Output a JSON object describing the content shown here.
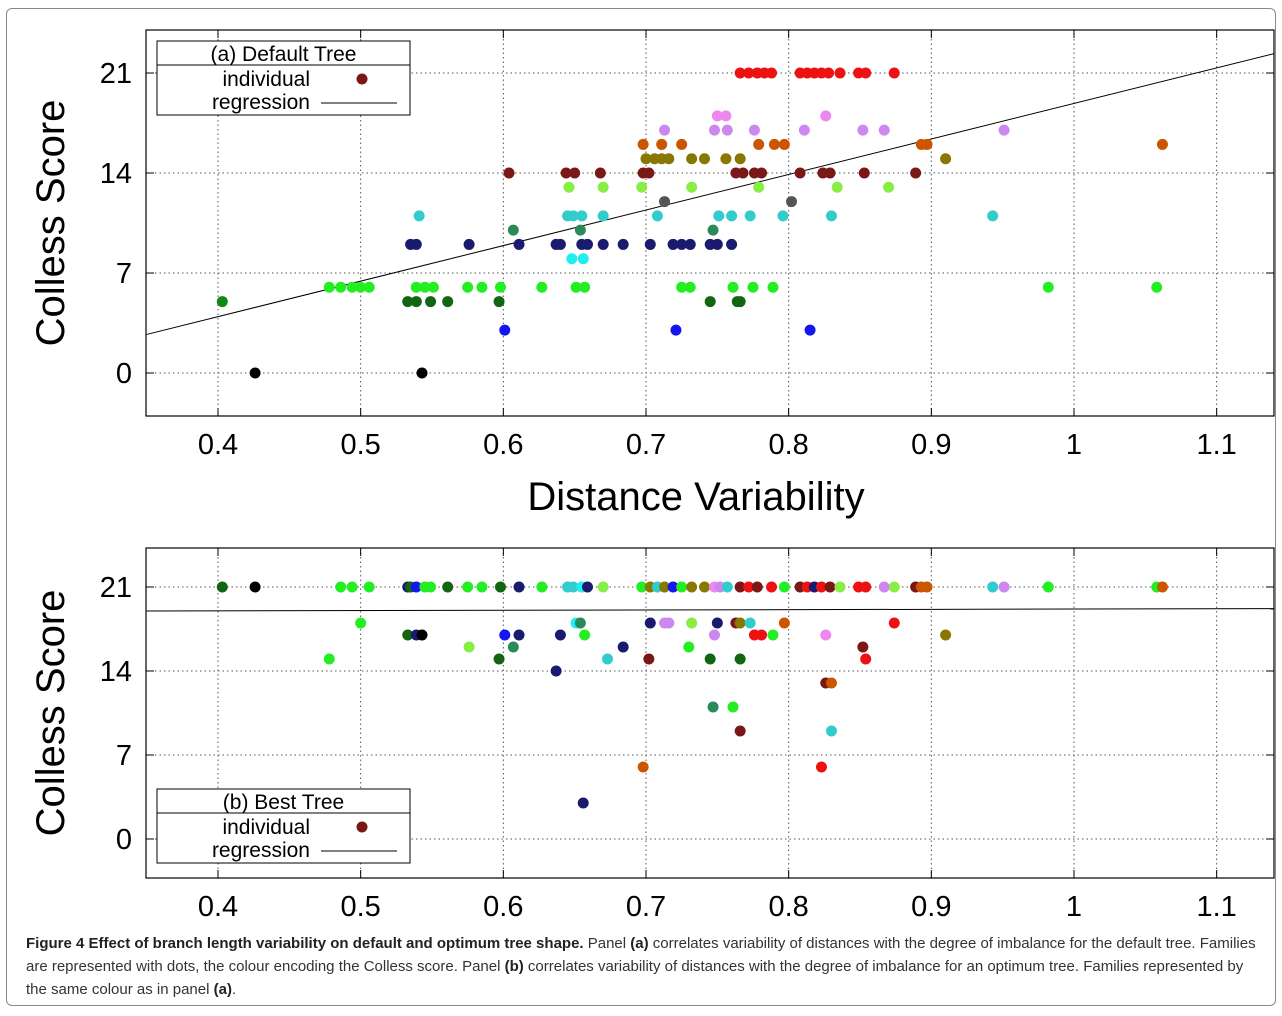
{
  "chart_data": [
    {
      "type": "scatter",
      "panel": "(a) Default Tree",
      "xlabel": "Distance Variability",
      "ylabel": "Colless Score",
      "xlim": [
        0.35,
        1.15
      ],
      "ylim": [
        -3,
        24
      ],
      "xticks": [
        "0.4",
        "0.5",
        "0.6",
        "0.7",
        "0.8",
        "0.9",
        "1",
        "1.1"
      ],
      "yticks": [
        "0",
        "7",
        "14",
        "21"
      ],
      "grid": true,
      "legend": {
        "position": "top-left",
        "title": "(a) Default Tree",
        "entries": [
          "individual",
          "regression"
        ]
      },
      "regression": [
        [
          0.35,
          2.7
        ],
        [
          1.15,
          22.6
        ]
      ],
      "points": [
        [
          0.403,
          5,
          "#118811"
        ],
        [
          0.426,
          0,
          "#000000"
        ],
        [
          0.543,
          0,
          "#000000"
        ],
        [
          0.478,
          6,
          "#22ee22"
        ],
        [
          0.486,
          6,
          "#22ee22"
        ],
        [
          0.494,
          6,
          "#22ee22"
        ],
        [
          0.5,
          6,
          "#22ee22"
        ],
        [
          0.506,
          6,
          "#22ee22"
        ],
        [
          0.533,
          5,
          "#116611"
        ],
        [
          0.539,
          5,
          "#116611"
        ],
        [
          0.549,
          5,
          "#116611"
        ],
        [
          0.561,
          5,
          "#116611"
        ],
        [
          0.597,
          5,
          "#116611"
        ],
        [
          0.539,
          6,
          "#22ee22"
        ],
        [
          0.545,
          6,
          "#22ee22"
        ],
        [
          0.551,
          6,
          "#22ee22"
        ],
        [
          0.575,
          6,
          "#22ee22"
        ],
        [
          0.585,
          6,
          "#22ee22"
        ],
        [
          0.598,
          6,
          "#22ee22"
        ],
        [
          0.627,
          6,
          "#22ee22"
        ],
        [
          0.651,
          6,
          "#22ee22"
        ],
        [
          0.657,
          6,
          "#22ee22"
        ],
        [
          0.725,
          6,
          "#22ee22"
        ],
        [
          0.731,
          6,
          "#22ee22"
        ],
        [
          0.761,
          6,
          "#22ee22"
        ],
        [
          0.775,
          6,
          "#22ee22"
        ],
        [
          0.789,
          6,
          "#22ee22"
        ],
        [
          0.982,
          6,
          "#22ee22"
        ],
        [
          1.058,
          6,
          "#22ee22"
        ],
        [
          0.745,
          5,
          "#116611"
        ],
        [
          0.764,
          5,
          "#116611"
        ],
        [
          0.766,
          5,
          "#116611"
        ],
        [
          0.601,
          3,
          "#1515ee"
        ],
        [
          0.721,
          3,
          "#1515ee"
        ],
        [
          0.815,
          3,
          "#1515ee"
        ],
        [
          0.535,
          9,
          "#1a1a6e"
        ],
        [
          0.539,
          9,
          "#1a1a6e"
        ],
        [
          0.576,
          9,
          "#1a1a6e"
        ],
        [
          0.611,
          9,
          "#1a1a6e"
        ],
        [
          0.637,
          9,
          "#1a1a6e"
        ],
        [
          0.64,
          9,
          "#1a1a6e"
        ],
        [
          0.655,
          9,
          "#1a1a6e"
        ],
        [
          0.659,
          9,
          "#1a1a6e"
        ],
        [
          0.67,
          9,
          "#1a1a6e"
        ],
        [
          0.684,
          9,
          "#1a1a6e"
        ],
        [
          0.703,
          9,
          "#1a1a6e"
        ],
        [
          0.719,
          9,
          "#1a1a6e"
        ],
        [
          0.725,
          9,
          "#1a1a6e"
        ],
        [
          0.731,
          9,
          "#1a1a6e"
        ],
        [
          0.745,
          9,
          "#1a1a6e"
        ],
        [
          0.75,
          9,
          "#1a1a6e"
        ],
        [
          0.76,
          9,
          "#1a1a6e"
        ],
        [
          0.541,
          11,
          "#33cccc"
        ],
        [
          0.645,
          11,
          "#33cccc"
        ],
        [
          0.649,
          11,
          "#33cccc"
        ],
        [
          0.655,
          11,
          "#33cccc"
        ],
        [
          0.67,
          11,
          "#33cccc"
        ],
        [
          0.708,
          11,
          "#33cccc"
        ],
        [
          0.751,
          11,
          "#33cccc"
        ],
        [
          0.76,
          11,
          "#33cccc"
        ],
        [
          0.773,
          11,
          "#33cccc"
        ],
        [
          0.796,
          11,
          "#33cccc"
        ],
        [
          0.83,
          11,
          "#33cccc"
        ],
        [
          0.943,
          11,
          "#33cccc"
        ],
        [
          0.648,
          8,
          "#22eeee"
        ],
        [
          0.656,
          8,
          "#22eeee"
        ],
        [
          0.607,
          10,
          "#2a8a5a"
        ],
        [
          0.654,
          10,
          "#2a8a5a"
        ],
        [
          0.747,
          10,
          "#2a8a5a"
        ],
        [
          0.646,
          13,
          "#88ee44"
        ],
        [
          0.67,
          13,
          "#88ee44"
        ],
        [
          0.697,
          13,
          "#88ee44"
        ],
        [
          0.732,
          13,
          "#88ee44"
        ],
        [
          0.779,
          13,
          "#88ee44"
        ],
        [
          0.834,
          13,
          "#88ee44"
        ],
        [
          0.87,
          13,
          "#88ee44"
        ],
        [
          0.713,
          12,
          "#555555"
        ],
        [
          0.802,
          12,
          "#555555"
        ],
        [
          0.604,
          14,
          "#7a1818"
        ],
        [
          0.644,
          14,
          "#7a1818"
        ],
        [
          0.65,
          14,
          "#7a1818"
        ],
        [
          0.668,
          14,
          "#7a1818"
        ],
        [
          0.698,
          14,
          "#7a1818"
        ],
        [
          0.702,
          14,
          "#7a1818"
        ],
        [
          0.763,
          14,
          "#7a1818"
        ],
        [
          0.768,
          14,
          "#7a1818"
        ],
        [
          0.776,
          14,
          "#7a1818"
        ],
        [
          0.781,
          14,
          "#7a1818"
        ],
        [
          0.808,
          14,
          "#7a1818"
        ],
        [
          0.824,
          14,
          "#7a1818"
        ],
        [
          0.829,
          14,
          "#7a1818"
        ],
        [
          0.853,
          14,
          "#7a1818"
        ],
        [
          0.889,
          14,
          "#7a1818"
        ],
        [
          0.7,
          15,
          "#887700"
        ],
        [
          0.706,
          15,
          "#887700"
        ],
        [
          0.711,
          15,
          "#887700"
        ],
        [
          0.716,
          15,
          "#887700"
        ],
        [
          0.732,
          15,
          "#887700"
        ],
        [
          0.741,
          15,
          "#887700"
        ],
        [
          0.756,
          15,
          "#887700"
        ],
        [
          0.766,
          15,
          "#887700"
        ],
        [
          0.91,
          15,
          "#887700"
        ],
        [
          0.698,
          16,
          "#cc5500"
        ],
        [
          0.711,
          16,
          "#cc5500"
        ],
        [
          0.725,
          16,
          "#cc5500"
        ],
        [
          0.779,
          16,
          "#cc5500"
        ],
        [
          0.79,
          16,
          "#cc5500"
        ],
        [
          0.797,
          16,
          "#cc5500"
        ],
        [
          0.893,
          16,
          "#cc5500"
        ],
        [
          0.897,
          16,
          "#cc5500"
        ],
        [
          1.062,
          16,
          "#cc5500"
        ],
        [
          0.713,
          17,
          "#cc88ee"
        ],
        [
          0.748,
          17,
          "#cc88ee"
        ],
        [
          0.757,
          17,
          "#cc88ee"
        ],
        [
          0.776,
          17,
          "#cc88ee"
        ],
        [
          0.811,
          17,
          "#cc88ee"
        ],
        [
          0.852,
          17,
          "#cc88ee"
        ],
        [
          0.867,
          17,
          "#cc88ee"
        ],
        [
          0.951,
          17,
          "#cc88ee"
        ],
        [
          0.75,
          18,
          "#ee88ee"
        ],
        [
          0.756,
          18,
          "#ee88ee"
        ],
        [
          0.826,
          18,
          "#ee88ee"
        ],
        [
          0.766,
          21,
          "#ee1111"
        ],
        [
          0.772,
          21,
          "#ee1111"
        ],
        [
          0.778,
          21,
          "#ee1111"
        ],
        [
          0.783,
          21,
          "#ee1111"
        ],
        [
          0.788,
          21,
          "#ee1111"
        ],
        [
          0.808,
          21,
          "#ee1111"
        ],
        [
          0.813,
          21,
          "#ee1111"
        ],
        [
          0.818,
          21,
          "#ee1111"
        ],
        [
          0.823,
          21,
          "#ee1111"
        ],
        [
          0.828,
          21,
          "#ee1111"
        ],
        [
          0.836,
          21,
          "#ee1111"
        ],
        [
          0.849,
          21,
          "#ee1111"
        ],
        [
          0.854,
          21,
          "#ee1111"
        ],
        [
          0.874,
          21,
          "#ee1111"
        ]
      ]
    },
    {
      "type": "scatter",
      "panel": "(b) Best Tree",
      "xlabel": "",
      "ylabel": "Colless Score",
      "xlim": [
        0.35,
        1.15
      ],
      "ylim": [
        -3,
        24
      ],
      "xticks": [
        "0.4",
        "0.5",
        "0.6",
        "0.7",
        "0.8",
        "0.9",
        "1",
        "1.1"
      ],
      "yticks": [
        "0",
        "7",
        "14",
        "21"
      ],
      "grid": true,
      "legend": {
        "position": "bottom-left",
        "title": "(b) Best Tree",
        "entries": [
          "individual",
          "regression"
        ]
      },
      "regression": [
        [
          0.35,
          19.0
        ],
        [
          1.15,
          19.2
        ]
      ],
      "points": [
        [
          0.403,
          21,
          "#116611"
        ],
        [
          0.426,
          21,
          "#000000"
        ],
        [
          0.486,
          21,
          "#22ee22"
        ],
        [
          0.494,
          21,
          "#22ee22"
        ],
        [
          0.506,
          21,
          "#22ee22"
        ],
        [
          0.533,
          21,
          "#1a1a6e"
        ],
        [
          0.535,
          21,
          "#116611"
        ],
        [
          0.539,
          21,
          "#1515ee"
        ],
        [
          0.545,
          21,
          "#22ee22"
        ],
        [
          0.549,
          21,
          "#22ee22"
        ],
        [
          0.561,
          21,
          "#116611"
        ],
        [
          0.575,
          21,
          "#22ee22"
        ],
        [
          0.585,
          21,
          "#22ee22"
        ],
        [
          0.598,
          21,
          "#116611"
        ],
        [
          0.611,
          21,
          "#1a1a6e"
        ],
        [
          0.627,
          21,
          "#22ee22"
        ],
        [
          0.645,
          21,
          "#33cccc"
        ],
        [
          0.649,
          21,
          "#33cccc"
        ],
        [
          0.655,
          21,
          "#22eeee"
        ],
        [
          0.659,
          21,
          "#1a1a6e"
        ],
        [
          0.67,
          21,
          "#88ee44"
        ],
        [
          0.697,
          21,
          "#22ee22"
        ],
        [
          0.703,
          21,
          "#887700"
        ],
        [
          0.708,
          21,
          "#33cccc"
        ],
        [
          0.713,
          21,
          "#887700"
        ],
        [
          0.719,
          21,
          "#1515ee"
        ],
        [
          0.725,
          21,
          "#22ee22"
        ],
        [
          0.732,
          21,
          "#887700"
        ],
        [
          0.741,
          21,
          "#887700"
        ],
        [
          0.748,
          21,
          "#ee88ee"
        ],
        [
          0.752,
          21,
          "#cc88ee"
        ],
        [
          0.757,
          21,
          "#33cccc"
        ],
        [
          0.766,
          21,
          "#7a1818"
        ],
        [
          0.772,
          21,
          "#ee1111"
        ],
        [
          0.778,
          21,
          "#7a1818"
        ],
        [
          0.788,
          21,
          "#ee1111"
        ],
        [
          0.797,
          21,
          "#22ee22"
        ],
        [
          0.808,
          21,
          "#7a1818"
        ],
        [
          0.813,
          21,
          "#ee1111"
        ],
        [
          0.818,
          21,
          "#1a1a6e"
        ],
        [
          0.823,
          21,
          "#ee1111"
        ],
        [
          0.829,
          21,
          "#7a1818"
        ],
        [
          0.836,
          21,
          "#88ee44"
        ],
        [
          0.849,
          21,
          "#ee1111"
        ],
        [
          0.854,
          21,
          "#ee1111"
        ],
        [
          0.867,
          21,
          "#cc88ee"
        ],
        [
          0.874,
          21,
          "#88ee44"
        ],
        [
          0.889,
          21,
          "#7a1818"
        ],
        [
          0.893,
          21,
          "#cc5500"
        ],
        [
          0.897,
          21,
          "#cc5500"
        ],
        [
          0.943,
          21,
          "#33cccc"
        ],
        [
          0.951,
          21,
          "#cc88ee"
        ],
        [
          0.982,
          21,
          "#22ee22"
        ],
        [
          1.058,
          21,
          "#22ee22"
        ],
        [
          1.062,
          21,
          "#cc5500"
        ],
        [
          0.5,
          18,
          "#22ee22"
        ],
        [
          0.651,
          18,
          "#22eeee"
        ],
        [
          0.654,
          18,
          "#2a8a5a"
        ],
        [
          0.703,
          18,
          "#1a1a6e"
        ],
        [
          0.713,
          18,
          "#cc88ee"
        ],
        [
          0.716,
          18,
          "#cc88ee"
        ],
        [
          0.732,
          18,
          "#88ee44"
        ],
        [
          0.75,
          18,
          "#1a1a6e"
        ],
        [
          0.763,
          18,
          "#7a1818"
        ],
        [
          0.766,
          18,
          "#887700"
        ],
        [
          0.773,
          18,
          "#33cccc"
        ],
        [
          0.797,
          18,
          "#cc5500"
        ],
        [
          0.874,
          18,
          "#ee1111"
        ],
        [
          0.533,
          17,
          "#116611"
        ],
        [
          0.539,
          17,
          "#1a1a6e"
        ],
        [
          0.543,
          17,
          "#000000"
        ],
        [
          0.601,
          17,
          "#1515ee"
        ],
        [
          0.611,
          17,
          "#1a1a6e"
        ],
        [
          0.64,
          17,
          "#1a1a6e"
        ],
        [
          0.657,
          17,
          "#22ee22"
        ],
        [
          0.748,
          17,
          "#cc88ee"
        ],
        [
          0.776,
          17,
          "#ee1111"
        ],
        [
          0.781,
          17,
          "#ee1111"
        ],
        [
          0.789,
          17,
          "#22ee22"
        ],
        [
          0.826,
          17,
          "#ee88ee"
        ],
        [
          0.91,
          17,
          "#887700"
        ],
        [
          0.478,
          15,
          "#22ee22"
        ],
        [
          0.576,
          16,
          "#88ee44"
        ],
        [
          0.597,
          15,
          "#116611"
        ],
        [
          0.607,
          16,
          "#2a8a5a"
        ],
        [
          0.637,
          14,
          "#1a1a6e"
        ],
        [
          0.673,
          15,
          "#33cccc"
        ],
        [
          0.684,
          16,
          "#1a1a6e"
        ],
        [
          0.702,
          15,
          "#7a1818"
        ],
        [
          0.73,
          16,
          "#22ee22"
        ],
        [
          0.745,
          15,
          "#116611"
        ],
        [
          0.766,
          15,
          "#116611"
        ],
        [
          0.852,
          16,
          "#7a1818"
        ],
        [
          0.854,
          15,
          "#ee1111"
        ],
        [
          0.826,
          13,
          "#7a1818"
        ],
        [
          0.83,
          13,
          "#cc5500"
        ],
        [
          0.747,
          11,
          "#2a8a5a"
        ],
        [
          0.761,
          11,
          "#22ee22"
        ],
        [
          0.766,
          9,
          "#7a1818"
        ],
        [
          0.83,
          9,
          "#33cccc"
        ],
        [
          0.698,
          6,
          "#cc5500"
        ],
        [
          0.823,
          6,
          "#ee1111"
        ],
        [
          0.656,
          3,
          "#1a1a6e"
        ]
      ]
    }
  ],
  "caption": {
    "label": "Figure 4 Effect of branch length variability on default and optimum tree shape.",
    "t1": " Panel ",
    "a1": "(a)",
    "t2": " correlates variability of distances with the degree of imbalance for the default tree. Families are represented with dots, the colour encoding the Colless score. Panel ",
    "b1": "(b)",
    "t3": " correlates variability of distances with the degree of imbalance for an optimum tree. Families represented by the same colour as in panel ",
    "a2": "(a)",
    "t4": "."
  }
}
